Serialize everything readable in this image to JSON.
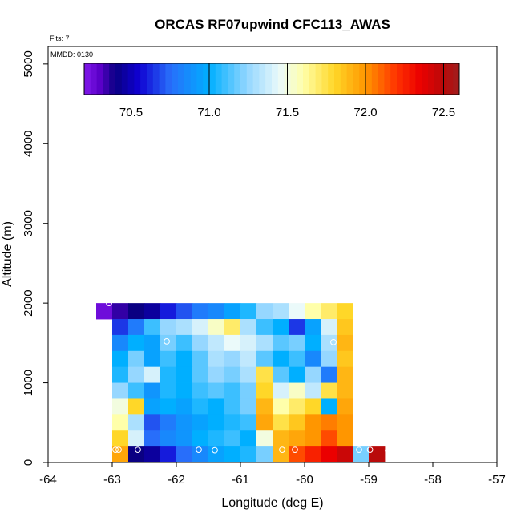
{
  "chart_data": {
    "type": "heatmap",
    "title": "ORCAS RF07upwind CFC113_AWAS",
    "xlabel": "Longitude (deg E)",
    "ylabel": "Altitude (m)",
    "flights_note": "Flts: 7",
    "date_note": "MMDD: 0130",
    "xlim": [
      -64,
      -57
    ],
    "ylim": [
      0,
      5200
    ],
    "x_ticks": [
      -64,
      -63,
      -62,
      -61,
      -60,
      -59,
      -58,
      -57
    ],
    "x_tick_labels": [
      "-64",
      "-63",
      "-62",
      "-61",
      "-60",
      "-59",
      "-58",
      "-57"
    ],
    "y_ticks": [
      0,
      1000,
      2000,
      3000,
      4000,
      5000
    ],
    "y_tick_labels": [
      "0",
      "1000",
      "2000",
      "3000",
      "4000",
      "5000"
    ],
    "colorbar": {
      "min": 70.2,
      "max": 72.6,
      "ticks": [
        70.5,
        71.0,
        71.5,
        72.0,
        72.5
      ],
      "tick_labels": [
        "70.5",
        "71.0",
        "71.5",
        "72.0",
        "72.5"
      ]
    },
    "cell_width_deg": 0.25,
    "cell_height_m": 200,
    "cell_rows": [
      {
        "alt": 1900,
        "lon_start": -63.25,
        "values": [
          70.25,
          70.35,
          70.4,
          70.45,
          70.6,
          70.7,
          70.8,
          70.85,
          70.95,
          71.05,
          71.25,
          71.3,
          71.45,
          71.6,
          71.7,
          71.8
        ]
      },
      {
        "alt": 1700,
        "lon_start": -63.0,
        "values": [
          70.65,
          70.8,
          71.1,
          71.25,
          71.3,
          71.4,
          71.55,
          71.7,
          71.3,
          71.1,
          71.0,
          70.65,
          70.95,
          71.4,
          71.85
        ]
      },
      {
        "alt": 1500,
        "lon_start": -63.0,
        "values": [
          70.85,
          71.0,
          70.95,
          71.2,
          71.1,
          71.25,
          71.35,
          71.45,
          71.4,
          71.3,
          71.15,
          71.2,
          71.0,
          71.3,
          71.9
        ]
      },
      {
        "alt": 1300,
        "lon_start": -63.0,
        "values": [
          71.0,
          71.2,
          70.95,
          71.1,
          71.0,
          71.15,
          71.3,
          71.25,
          71.35,
          71.15,
          71.0,
          71.1,
          70.85,
          71.25,
          71.85
        ]
      },
      {
        "alt": 1100,
        "lon_start": -63.0,
        "values": [
          71.05,
          71.25,
          71.4,
          71.05,
          71.0,
          71.15,
          71.25,
          71.2,
          71.3,
          71.75,
          71.15,
          71.0,
          71.25,
          70.8,
          71.9
        ]
      },
      {
        "alt": 900,
        "lon_start": -63.0,
        "values": [
          71.25,
          71.1,
          70.9,
          71.05,
          71.0,
          71.1,
          71.15,
          71.1,
          71.2,
          71.8,
          71.4,
          71.55,
          71.35,
          71.75,
          71.9
        ]
      },
      {
        "alt": 700,
        "lon_start": -63.0,
        "values": [
          71.5,
          71.8,
          70.95,
          71.0,
          70.95,
          71.05,
          71.0,
          71.1,
          71.2,
          71.9,
          71.6,
          71.7,
          71.8,
          71.0,
          71.95
        ]
      },
      {
        "alt": 500,
        "lon_start": -63.0,
        "values": [
          71.6,
          71.3,
          70.7,
          70.8,
          70.9,
          70.95,
          71.0,
          71.05,
          71.1,
          71.95,
          71.75,
          71.85,
          72.0,
          72.05,
          72.0
        ]
      },
      {
        "alt": 300,
        "lon_start": -63.0,
        "values": [
          71.8,
          71.4,
          70.75,
          70.85,
          70.9,
          71.0,
          71.05,
          71.1,
          71.0,
          71.5,
          71.9,
          71.95,
          72.0,
          72.15,
          72.0
        ]
      },
      {
        "alt": 100,
        "lon_start": -63.0,
        "values": [
          71.95,
          70.4,
          70.45,
          70.6,
          70.75,
          70.85,
          70.95,
          71.0,
          71.05,
          71.2,
          71.9,
          72.15,
          72.25,
          72.35,
          72.45,
          71.2,
          72.5
        ]
      }
    ],
    "sample_points": [
      {
        "lon": -63.05,
        "alt": 2000
      },
      {
        "lon": -62.15,
        "alt": 1520
      },
      {
        "lon": -59.55,
        "alt": 1510
      },
      {
        "lon": -58.95,
        "alt": 1900
      },
      {
        "lon": -62.95,
        "alt": 160
      },
      {
        "lon": -62.9,
        "alt": 160
      },
      {
        "lon": -62.6,
        "alt": 160
      },
      {
        "lon": -61.65,
        "alt": 160
      },
      {
        "lon": -61.4,
        "alt": 155
      },
      {
        "lon": -60.35,
        "alt": 160
      },
      {
        "lon": -60.15,
        "alt": 160
      },
      {
        "lon": -59.15,
        "alt": 160
      },
      {
        "lon": -58.98,
        "alt": 160
      },
      {
        "lon": -58.7,
        "alt": 150
      }
    ]
  }
}
